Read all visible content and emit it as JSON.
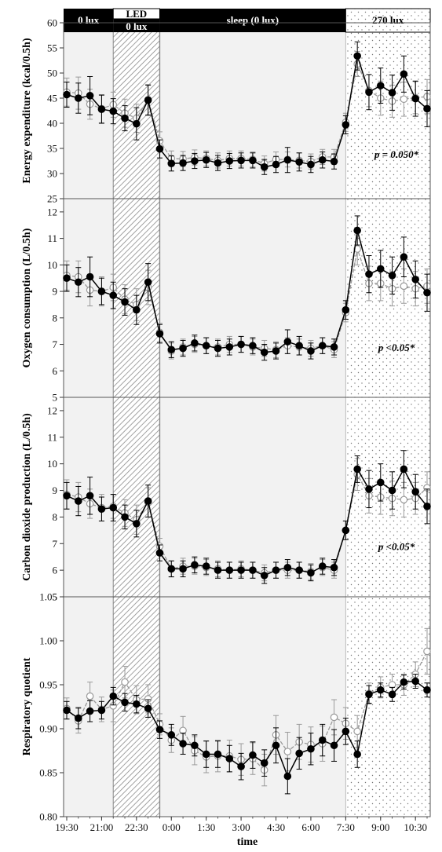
{
  "chart_data": {
    "type": "line",
    "xlabel": "time",
    "x_tick_labels": [
      "19:30",
      "21:00",
      "22:30",
      "0:00",
      "1:30",
      "3:00",
      "4:30",
      "6:00",
      "7:30",
      "9:00",
      "10:30"
    ],
    "x_tick_indices": [
      0,
      3,
      6,
      9,
      12,
      15,
      18,
      21,
      24,
      27,
      30
    ],
    "n_points": 32,
    "phases": [
      {
        "label": "0 lux",
        "label2": "",
        "start": 0,
        "end": 4,
        "style": "gray"
      },
      {
        "label": "LED",
        "label2": "0 lux",
        "start": 4,
        "end": 8,
        "style": "hatched"
      },
      {
        "label": "sleep (0 lux)",
        "label2": "",
        "start": 8,
        "end": 24,
        "style": "gray"
      },
      {
        "label": "270 lux",
        "label2": "",
        "start": 24,
        "end": 31.3,
        "style": "dotted"
      }
    ],
    "colors": {
      "filled": "#000000",
      "open": "#9a9a9a",
      "band": "#000000"
    },
    "panels": [
      {
        "ylabel": "Energy expenditure (kcal/0.5h)",
        "ylim": [
          25,
          60
        ],
        "yticks": [
          "25",
          "30",
          "35",
          "40",
          "45",
          "50",
          "55",
          "60"
        ],
        "annotation": "p = 0.050*",
        "series": [
          {
            "marker": "filled",
            "values": [
              45.7,
              45.0,
              45.5,
              42.8,
              42.4,
              41.0,
              39.9,
              44.6,
              34.9,
              32.0,
              32.1,
              32.5,
              32.7,
              32.1,
              32.5,
              32.6,
              32.6,
              31.3,
              31.8,
              32.7,
              32.3,
              31.8,
              32.7,
              32.4,
              39.7,
              53.4,
              46.2,
              47.5,
              46.1,
              49.8,
              44.9,
              42.9
            ],
            "errors": [
              2.5,
              3.0,
              3.8,
              2.8,
              2.5,
              2.5,
              3.2,
              3.0,
              1.8,
              1.5,
              1.5,
              1.5,
              1.5,
              1.5,
              1.5,
              1.5,
              1.5,
              1.5,
              1.6,
              2.5,
              1.8,
              1.6,
              1.6,
              1.5,
              1.8,
              2.8,
              3.5,
              3.5,
              3.5,
              3.6,
              3.5,
              3.6
            ]
          },
          {
            "marker": "open",
            "values": [
              46.2,
              46.0,
              43.8,
              42.9,
              43.7,
              42.0,
              41.0,
              44.7,
              36.5,
              33.0,
              32.9,
              33.2,
              33.0,
              32.6,
              33.0,
              33.0,
              32.8,
              32.0,
              32.8,
              32.8,
              32.6,
              32.4,
              33.3,
              33.3,
              40.2,
              51.8,
              46.5,
              45.0,
              44.4,
              44.8,
              45.1,
              45.3
            ],
            "errors": [
              2.8,
              3.2,
              3.0,
              2.8,
              2.5,
              2.8,
              2.8,
              3.0,
              1.8,
              1.5,
              1.5,
              1.5,
              1.5,
              1.5,
              1.5,
              1.5,
              1.5,
              1.5,
              1.5,
              1.5,
              1.5,
              1.5,
              1.5,
              1.5,
              1.8,
              2.5,
              3.2,
              3.4,
              3.2,
              3.4,
              3.2,
              3.4
            ]
          }
        ]
      },
      {
        "ylabel": "Oxygen consumption (L/0.5h)",
        "ylim": [
          5,
          12.5
        ],
        "yticks": [
          "5",
          "6",
          "7",
          "8",
          "9",
          "10",
          "11",
          "12"
        ],
        "annotation": "p <0.05*",
        "series": [
          {
            "marker": "filled",
            "values": [
              9.5,
              9.35,
              9.55,
              9.0,
              8.85,
              8.6,
              8.3,
              9.35,
              7.4,
              6.8,
              6.85,
              7.05,
              6.95,
              6.85,
              6.9,
              7.0,
              6.95,
              6.7,
              6.75,
              7.1,
              6.95,
              6.75,
              6.95,
              6.9,
              8.3,
              11.3,
              9.65,
              9.85,
              9.6,
              10.3,
              9.45,
              8.95
            ],
            "errors": [
              0.5,
              0.55,
              0.75,
              0.5,
              0.5,
              0.5,
              0.55,
              0.7,
              0.35,
              0.3,
              0.3,
              0.3,
              0.3,
              0.3,
              0.3,
              0.3,
              0.3,
              0.3,
              0.3,
              0.45,
              0.35,
              0.3,
              0.3,
              0.3,
              0.35,
              0.55,
              0.7,
              0.7,
              0.7,
              0.75,
              0.7,
              0.7
            ]
          },
          {
            "marker": "open",
            "values": [
              9.6,
              9.55,
              9.05,
              9.0,
              9.15,
              8.7,
              8.5,
              9.15,
              7.45,
              6.75,
              6.9,
              7.0,
              6.95,
              6.9,
              7.0,
              7.0,
              6.9,
              6.85,
              6.8,
              6.95,
              6.9,
              6.85,
              6.95,
              6.8,
              8.2,
              10.6,
              9.3,
              9.3,
              9.1,
              9.2,
              9.1,
              9.2
            ],
            "errors": [
              0.55,
              0.6,
              0.6,
              0.55,
              0.5,
              0.55,
              0.6,
              0.65,
              0.35,
              0.3,
              0.3,
              0.3,
              0.3,
              0.3,
              0.3,
              0.3,
              0.3,
              0.3,
              0.3,
              0.3,
              0.3,
              0.3,
              0.3,
              0.3,
              0.35,
              0.6,
              0.65,
              0.65,
              0.65,
              0.65,
              0.65,
              0.65
            ]
          }
        ]
      },
      {
        "ylabel": "Carbon dioxide production (L/0.5h)",
        "ylim": [
          5,
          12.5
        ],
        "yticks": [
          "5",
          "6",
          "7",
          "8",
          "9",
          "10",
          "11",
          "12"
        ],
        "annotation": "p <0.05*",
        "series": [
          {
            "marker": "filled",
            "values": [
              8.8,
              8.6,
              8.8,
              8.3,
              8.35,
              8.0,
              7.75,
              8.6,
              6.65,
              6.05,
              6.05,
              6.2,
              6.15,
              6.0,
              6.0,
              6.0,
              6.0,
              5.8,
              6.0,
              6.1,
              6.0,
              5.9,
              6.15,
              6.1,
              7.5,
              9.8,
              9.05,
              9.3,
              9.0,
              9.8,
              8.95,
              8.4
            ],
            "errors": [
              0.5,
              0.55,
              0.7,
              0.45,
              0.5,
              0.45,
              0.5,
              0.6,
              0.3,
              0.3,
              0.3,
              0.3,
              0.3,
              0.3,
              0.3,
              0.3,
              0.3,
              0.3,
              0.3,
              0.3,
              0.3,
              0.3,
              0.3,
              0.3,
              0.35,
              0.5,
              0.7,
              0.7,
              0.7,
              0.7,
              0.65,
              0.65
            ]
          },
          {
            "marker": "open",
            "values": [
              8.85,
              8.75,
              8.5,
              8.35,
              8.4,
              8.15,
              7.9,
              8.55,
              6.9,
              6.05,
              6.15,
              6.15,
              6.1,
              6.05,
              6.0,
              6.05,
              6.0,
              5.9,
              6.0,
              6.0,
              6.0,
              5.95,
              6.1,
              6.0,
              7.5,
              9.6,
              8.8,
              8.75,
              8.7,
              8.65,
              8.7,
              9.1
            ],
            "errors": [
              0.55,
              0.55,
              0.55,
              0.5,
              0.45,
              0.5,
              0.55,
              0.55,
              0.3,
              0.3,
              0.3,
              0.3,
              0.3,
              0.3,
              0.3,
              0.3,
              0.3,
              0.3,
              0.3,
              0.3,
              0.3,
              0.3,
              0.3,
              0.3,
              0.35,
              0.6,
              0.65,
              0.65,
              0.65,
              0.65,
              0.6,
              0.6
            ]
          }
        ]
      },
      {
        "ylabel": "Respiratory quotient",
        "ylim": [
          0.8,
          1.05
        ],
        "yticks": [
          "0.80",
          "0.85",
          "0.90",
          "0.95",
          "1.00",
          "1.05"
        ],
        "annotation": "",
        "series": [
          {
            "marker": "filled",
            "values": [
              0.921,
              0.912,
              0.92,
              0.921,
              0.937,
              0.93,
              0.928,
              0.923,
              0.899,
              0.893,
              0.883,
              0.881,
              0.871,
              0.871,
              0.866,
              0.857,
              0.87,
              0.861,
              0.881,
              0.846,
              0.872,
              0.877,
              0.887,
              0.881,
              0.897,
              0.871,
              0.939,
              0.944,
              0.939,
              0.953,
              0.954,
              0.944
            ],
            "errors": [
              0.01,
              0.012,
              0.012,
              0.01,
              0.01,
              0.01,
              0.01,
              0.01,
              0.01,
              0.012,
              0.012,
              0.012,
              0.015,
              0.015,
              0.015,
              0.015,
              0.015,
              0.015,
              0.02,
              0.02,
              0.018,
              0.018,
              0.018,
              0.018,
              0.015,
              0.015,
              0.01,
              0.008,
              0.008,
              0.008,
              0.008,
              0.008
            ]
          },
          {
            "marker": "open",
            "values": [
              0.923,
              0.909,
              0.937,
              0.922,
              0.926,
              0.953,
              0.933,
              0.934,
              0.905,
              0.887,
              0.898,
              0.875,
              0.868,
              0.869,
              0.869,
              0.865,
              0.866,
              0.853,
              0.893,
              0.874,
              0.885,
              0.882,
              0.883,
              0.913,
              0.906,
              0.897,
              0.94,
              0.947,
              0.95,
              0.95,
              0.962,
              0.988
            ],
            "errors": [
              0.012,
              0.014,
              0.016,
              0.014,
              0.018,
              0.018,
              0.016,
              0.016,
              0.012,
              0.014,
              0.016,
              0.016,
              0.018,
              0.018,
              0.018,
              0.018,
              0.018,
              0.018,
              0.022,
              0.022,
              0.02,
              0.02,
              0.02,
              0.02,
              0.018,
              0.018,
              0.012,
              0.012,
              0.012,
              0.012,
              0.014,
              0.026
            ]
          }
        ]
      }
    ]
  }
}
